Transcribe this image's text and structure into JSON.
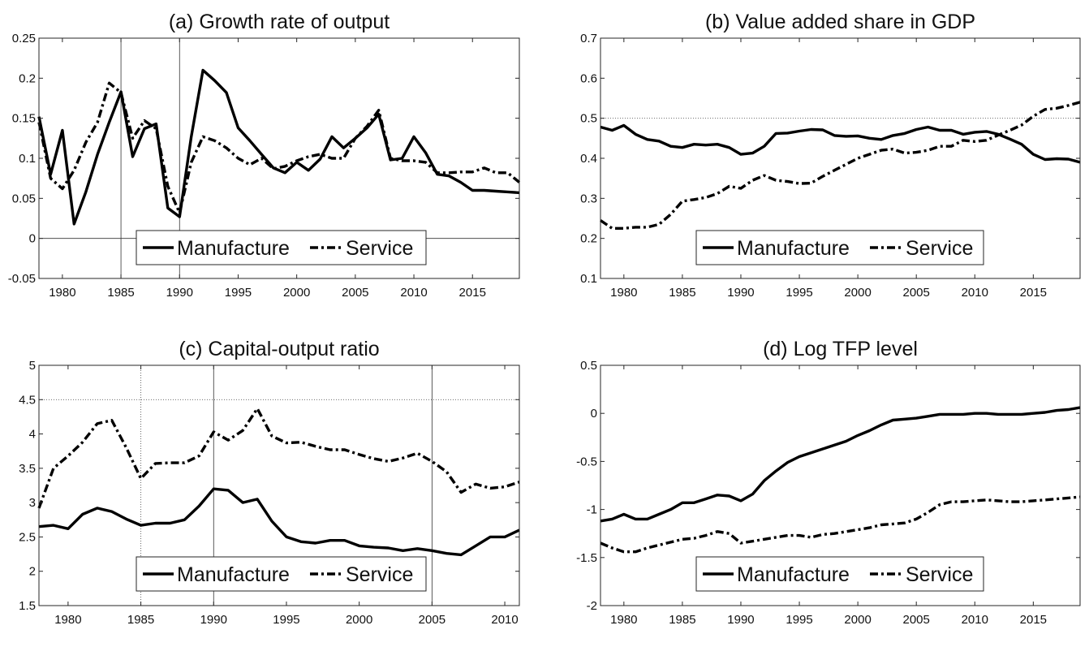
{
  "chart_data": [
    {
      "type": "line",
      "title": "(a) Growth rate of output",
      "xlabel": "",
      "ylabel": "",
      "xlim": [
        1978,
        2019
      ],
      "ylim": [
        -0.05,
        0.25
      ],
      "xticks": [
        "1980",
        "1985",
        "1990",
        "1995",
        "2000",
        "2005",
        "2010",
        "2015"
      ],
      "yticks": [
        "-0.05",
        "0",
        "0.05",
        "0.1",
        "0.15",
        "0.2",
        "0.25"
      ],
      "legend": [
        "Manufacture",
        "Service"
      ],
      "legend_position": "bottom-center",
      "grid": false,
      "reference_lines": [
        {
          "axis": "y",
          "value": 0,
          "style": "solid"
        },
        {
          "axis": "x",
          "value": 1985,
          "style": "solid"
        },
        {
          "axis": "x",
          "value": 1990,
          "style": "solid"
        }
      ],
      "x": [
        1978,
        1979,
        1980,
        1981,
        1982,
        1983,
        1984,
        1985,
        1986,
        1987,
        1988,
        1989,
        1990,
        1991,
        1992,
        1993,
        1994,
        1995,
        1996,
        1997,
        1998,
        1999,
        2000,
        2001,
        2002,
        2003,
        2004,
        2005,
        2006,
        2007,
        2008,
        2009,
        2010,
        2011,
        2012,
        2013,
        2014,
        2015,
        2016,
        2017,
        2018,
        2019
      ],
      "series": [
        {
          "name": "Manufacture",
          "style": "solid",
          "values": [
            0.152,
            0.08,
            0.135,
            0.018,
            0.058,
            0.105,
            0.145,
            0.183,
            0.102,
            0.137,
            0.143,
            0.038,
            0.027,
            0.127,
            0.21,
            0.197,
            0.182,
            0.138,
            0.122,
            0.105,
            0.088,
            0.082,
            0.095,
            0.085,
            0.099,
            0.127,
            0.113,
            0.125,
            0.138,
            0.155,
            0.098,
            0.1,
            0.127,
            0.107,
            0.08,
            0.078,
            0.07,
            0.06,
            0.06,
            0.059,
            0.058,
            0.057
          ]
        },
        {
          "name": "Service",
          "style": "dashdot",
          "values": [
            0.145,
            0.075,
            0.062,
            0.085,
            0.12,
            0.145,
            0.194,
            0.182,
            0.125,
            0.147,
            0.137,
            0.065,
            0.032,
            0.095,
            0.127,
            0.122,
            0.113,
            0.1,
            0.092,
            0.1,
            0.087,
            0.09,
            0.097,
            0.102,
            0.105,
            0.1,
            0.1,
            0.125,
            0.14,
            0.16,
            0.1,
            0.097,
            0.097,
            0.095,
            0.082,
            0.082,
            0.083,
            0.083,
            0.088,
            0.082,
            0.082,
            0.07
          ]
        }
      ]
    },
    {
      "type": "line",
      "title": "(b) Value added share in GDP",
      "xlabel": "",
      "ylabel": "",
      "xlim": [
        1978,
        2019
      ],
      "ylim": [
        0.1,
        0.7
      ],
      "xticks": [
        "1980",
        "1985",
        "1990",
        "1995",
        "2000",
        "2005",
        "2010",
        "2015"
      ],
      "yticks": [
        "0.1",
        "0.2",
        "0.3",
        "0.4",
        "0.5",
        "0.6",
        "0.7"
      ],
      "legend": [
        "Manufacture",
        "Service"
      ],
      "legend_position": "bottom-center",
      "grid": false,
      "reference_lines": [
        {
          "axis": "y",
          "value": 0.5,
          "style": "dotted"
        }
      ],
      "x": [
        1978,
        1979,
        1980,
        1981,
        1982,
        1983,
        1984,
        1985,
        1986,
        1987,
        1988,
        1989,
        1990,
        1991,
        1992,
        1993,
        1994,
        1995,
        1996,
        1997,
        1998,
        1999,
        2000,
        2001,
        2002,
        2003,
        2004,
        2005,
        2006,
        2007,
        2008,
        2009,
        2010,
        2011,
        2012,
        2013,
        2014,
        2015,
        2016,
        2017,
        2018,
        2019
      ],
      "series": [
        {
          "name": "Manufacture",
          "style": "solid",
          "values": [
            0.478,
            0.47,
            0.482,
            0.46,
            0.447,
            0.443,
            0.43,
            0.427,
            0.435,
            0.433,
            0.435,
            0.427,
            0.41,
            0.413,
            0.43,
            0.462,
            0.463,
            0.468,
            0.472,
            0.471,
            0.457,
            0.455,
            0.456,
            0.45,
            0.447,
            0.457,
            0.462,
            0.472,
            0.478,
            0.47,
            0.47,
            0.46,
            0.465,
            0.467,
            0.46,
            0.448,
            0.435,
            0.41,
            0.397,
            0.399,
            0.398,
            0.39
          ]
        },
        {
          "name": "Service",
          "style": "dashdot",
          "values": [
            0.245,
            0.225,
            0.225,
            0.228,
            0.228,
            0.235,
            0.26,
            0.293,
            0.297,
            0.302,
            0.312,
            0.33,
            0.325,
            0.345,
            0.357,
            0.345,
            0.342,
            0.337,
            0.338,
            0.355,
            0.37,
            0.385,
            0.4,
            0.41,
            0.42,
            0.423,
            0.413,
            0.415,
            0.42,
            0.43,
            0.43,
            0.445,
            0.442,
            0.445,
            0.458,
            0.47,
            0.483,
            0.505,
            0.522,
            0.525,
            0.532,
            0.54
          ]
        }
      ]
    },
    {
      "type": "line",
      "title": "(c) Capital-output ratio",
      "xlabel": "",
      "ylabel": "",
      "xlim": [
        1978,
        2011
      ],
      "ylim": [
        1.5,
        5
      ],
      "xticks": [
        "1980",
        "1985",
        "1990",
        "1995",
        "2000",
        "2005",
        "2010"
      ],
      "yticks": [
        "1.5",
        "2",
        "2.5",
        "3",
        "3.5",
        "4",
        "4.5",
        "5"
      ],
      "legend": [
        "Manufacture",
        "Service"
      ],
      "legend_position": "bottom-center",
      "grid": false,
      "reference_lines": [
        {
          "axis": "y",
          "value": 4.5,
          "style": "dotted"
        },
        {
          "axis": "x",
          "value": 1985,
          "style": "dotted"
        },
        {
          "axis": "x",
          "value": 1990,
          "style": "solid"
        },
        {
          "axis": "x",
          "value": 2005,
          "style": "solid"
        }
      ],
      "x": [
        1978,
        1979,
        1980,
        1981,
        1982,
        1983,
        1984,
        1985,
        1986,
        1987,
        1988,
        1989,
        1990,
        1991,
        1992,
        1993,
        1994,
        1995,
        1996,
        1997,
        1998,
        1999,
        2000,
        2001,
        2002,
        2003,
        2004,
        2005,
        2006,
        2007,
        2008,
        2009,
        2010,
        2011
      ],
      "series": [
        {
          "name": "Manufacture",
          "style": "solid",
          "values": [
            2.65,
            2.67,
            2.62,
            2.83,
            2.92,
            2.87,
            2.76,
            2.67,
            2.7,
            2.7,
            2.75,
            2.95,
            3.2,
            3.18,
            3.0,
            3.05,
            2.73,
            2.5,
            2.43,
            2.41,
            2.45,
            2.45,
            2.37,
            2.35,
            2.34,
            2.3,
            2.33,
            2.3,
            2.26,
            2.24,
            2.37,
            2.5,
            2.5,
            2.6
          ]
        },
        {
          "name": "Service",
          "style": "dashdot",
          "values": [
            2.92,
            3.5,
            3.68,
            3.88,
            4.15,
            4.2,
            3.8,
            3.35,
            3.57,
            3.58,
            3.58,
            3.68,
            4.03,
            3.91,
            4.05,
            4.37,
            3.97,
            3.87,
            3.88,
            3.82,
            3.77,
            3.77,
            3.7,
            3.64,
            3.6,
            3.65,
            3.72,
            3.6,
            3.45,
            3.15,
            3.27,
            3.21,
            3.23,
            3.3
          ]
        }
      ]
    },
    {
      "type": "line",
      "title": "(d) Log TFP level",
      "xlabel": "",
      "ylabel": "",
      "xlim": [
        1978,
        2019
      ],
      "ylim": [
        -2,
        0.5
      ],
      "xticks": [
        "1980",
        "1985",
        "1990",
        "1995",
        "2000",
        "2005",
        "2010",
        "2015"
      ],
      "yticks": [
        "-2",
        "-1.5",
        "-1",
        "-0.5",
        "0",
        "0.5"
      ],
      "legend": [
        "Manufacture",
        "Service"
      ],
      "legend_position": "bottom-center",
      "grid": false,
      "reference_lines": [],
      "x": [
        1978,
        1979,
        1980,
        1981,
        1982,
        1983,
        1984,
        1985,
        1986,
        1987,
        1988,
        1989,
        1990,
        1991,
        1992,
        1993,
        1994,
        1995,
        1996,
        1997,
        1998,
        1999,
        2000,
        2001,
        2002,
        2003,
        2004,
        2005,
        2006,
        2007,
        2008,
        2009,
        2010,
        2011,
        2012,
        2013,
        2014,
        2015,
        2016,
        2017,
        2018,
        2019
      ],
      "series": [
        {
          "name": "Manufacture",
          "style": "solid",
          "values": [
            -1.12,
            -1.1,
            -1.05,
            -1.1,
            -1.1,
            -1.05,
            -1.0,
            -0.93,
            -0.93,
            -0.89,
            -0.85,
            -0.86,
            -0.91,
            -0.84,
            -0.7,
            -0.6,
            -0.51,
            -0.45,
            -0.41,
            -0.37,
            -0.33,
            -0.29,
            -0.23,
            -0.18,
            -0.12,
            -0.07,
            -0.06,
            -0.05,
            -0.03,
            -0.01,
            -0.01,
            -0.01,
            0.0,
            0.0,
            -0.01,
            -0.01,
            -0.01,
            0.0,
            0.01,
            0.03,
            0.04,
            0.06
          ]
        },
        {
          "name": "Service",
          "style": "dashdot",
          "values": [
            -1.35,
            -1.4,
            -1.44,
            -1.44,
            -1.4,
            -1.37,
            -1.34,
            -1.31,
            -1.3,
            -1.27,
            -1.23,
            -1.25,
            -1.35,
            -1.33,
            -1.31,
            -1.29,
            -1.27,
            -1.27,
            -1.29,
            -1.26,
            -1.25,
            -1.23,
            -1.21,
            -1.19,
            -1.16,
            -1.15,
            -1.14,
            -1.1,
            -1.03,
            -0.95,
            -0.92,
            -0.92,
            -0.91,
            -0.9,
            -0.91,
            -0.92,
            -0.92,
            -0.91,
            -0.9,
            -0.89,
            -0.88,
            -0.87
          ]
        }
      ]
    }
  ]
}
